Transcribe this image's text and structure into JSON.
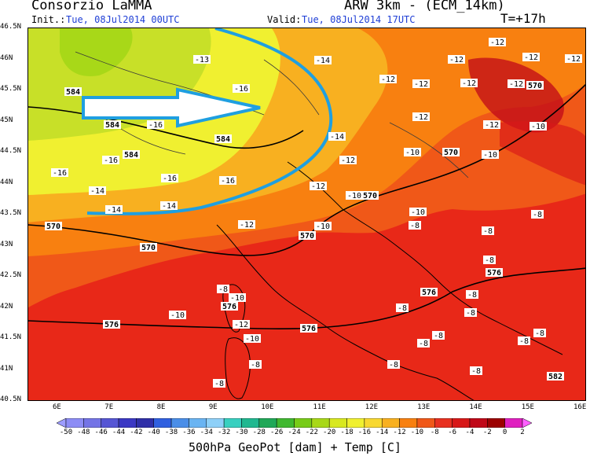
{
  "header": {
    "title": "Consorzio LaMMA",
    "model": "ARW 3km - (ECM_14km)",
    "init_label": "Init.:",
    "init_value": "Tue, 08Jul2014 00UTC",
    "valid_label": "Valid:",
    "valid_value": "Tue, 08Jul2014 17UTC",
    "forecast_step": "T=+17h"
  },
  "axes": {
    "lat_labels": [
      "46.5N",
      "46N",
      "45.5N",
      "45N",
      "44.5N",
      "44N",
      "43.5N",
      "43N",
      "42.5N",
      "42N",
      "41.5N",
      "41N",
      "40.5N"
    ],
    "lon_labels": [
      "6E",
      "7E",
      "8E",
      "9E",
      "10E",
      "11E",
      "12E",
      "13E",
      "14E",
      "15E",
      "16E"
    ]
  },
  "colorbar": {
    "ticks": [
      "-50",
      "-48",
      "-46",
      "-44",
      "-42",
      "-40",
      "-38",
      "-36",
      "-34",
      "-32",
      "-30",
      "-28",
      "-26",
      "-24",
      "-22",
      "-20",
      "-18",
      "-16",
      "-14",
      "-12",
      "-10",
      "-8",
      "-6",
      "-4",
      "-2",
      "0",
      "2"
    ],
    "colors": [
      "#9d9dff",
      "#8c8cf5",
      "#7474e6",
      "#5656d4",
      "#3b38c4",
      "#2f2fa8",
      "#3060e0",
      "#4a8ee8",
      "#6ab4f2",
      "#8ed0f8",
      "#38d0c0",
      "#20b890",
      "#20a858",
      "#40b830",
      "#78cc18",
      "#a8d818",
      "#d8e820",
      "#f0f030",
      "#f8d830",
      "#f8b020",
      "#f88010",
      "#f05818",
      "#e83020",
      "#d81818",
      "#c00818",
      "#9c0000",
      "#e020c0",
      "#ff60ff"
    ],
    "caption": "500hPa GeoPot [dam] + Temp [C]"
  },
  "map_labels": {
    "temperature": [
      {
        "text": "-13",
        "pos": [
          256,
          75
        ]
      },
      {
        "text": "-14",
        "pos": [
          410,
          76
        ]
      },
      {
        "text": "-16",
        "pos": [
          306,
          112
        ]
      },
      {
        "text": "-16",
        "pos": [
          197,
          158
        ]
      },
      {
        "text": "-16",
        "pos": [
          140,
          203
        ]
      },
      {
        "text": "-16",
        "pos": [
          75,
          219
        ]
      },
      {
        "text": "-14",
        "pos": [
          123,
          242
        ]
      },
      {
        "text": "-16",
        "pos": [
          215,
          226
        ]
      },
      {
        "text": "-16",
        "pos": [
          289,
          229
        ]
      },
      {
        "text": "-14",
        "pos": [
          144,
          266
        ]
      },
      {
        "text": "-14",
        "pos": [
          214,
          261
        ]
      },
      {
        "text": "-14",
        "pos": [
          428,
          173
        ]
      },
      {
        "text": "-12",
        "pos": [
          442,
          203
        ]
      },
      {
        "text": "-12",
        "pos": [
          404,
          236
        ]
      },
      {
        "text": "-10",
        "pos": [
          450,
          248
        ]
      },
      {
        "text": "-12",
        "pos": [
          313,
          285
        ]
      },
      {
        "text": "-10",
        "pos": [
          410,
          287
        ]
      },
      {
        "text": "-12",
        "pos": [
          632,
          53
        ]
      },
      {
        "text": "-12",
        "pos": [
          580,
          75
        ]
      },
      {
        "text": "-12",
        "pos": [
          675,
          72
        ]
      },
      {
        "text": "-12",
        "pos": [
          729,
          74
        ]
      },
      {
        "text": "-12",
        "pos": [
          493,
          100
        ]
      },
      {
        "text": "-12",
        "pos": [
          535,
          106
        ]
      },
      {
        "text": "-12",
        "pos": [
          596,
          105
        ]
      },
      {
        "text": "-12",
        "pos": [
          656,
          106
        ]
      },
      {
        "text": "-12",
        "pos": [
          535,
          148
        ]
      },
      {
        "text": "-12",
        "pos": [
          625,
          158
        ]
      },
      {
        "text": "-10",
        "pos": [
          684,
          160
        ]
      },
      {
        "text": "-10",
        "pos": [
          524,
          193
        ]
      },
      {
        "text": "-10",
        "pos": [
          623,
          196
        ]
      },
      {
        "text": "-10",
        "pos": [
          531,
          269
        ]
      },
      {
        "text": "-8",
        "pos": [
          527,
          286
        ]
      },
      {
        "text": "-8",
        "pos": [
          683,
          272
        ]
      },
      {
        "text": "-8",
        "pos": [
          620,
          293
        ]
      },
      {
        "text": "-8",
        "pos": [
          622,
          330
        ]
      },
      {
        "text": "-8",
        "pos": [
          283,
          367
        ]
      },
      {
        "text": "-10",
        "pos": [
          301,
          378
        ]
      },
      {
        "text": "-10",
        "pos": [
          225,
          400
        ]
      },
      {
        "text": "-8",
        "pos": [
          600,
          374
        ]
      },
      {
        "text": "-8",
        "pos": [
          511,
          391
        ]
      },
      {
        "text": "-8",
        "pos": [
          598,
          397
        ]
      },
      {
        "text": "-8",
        "pos": [
          686,
          423
        ]
      },
      {
        "text": "-8",
        "pos": [
          666,
          433
        ]
      },
      {
        "text": "-8",
        "pos": [
          538,
          436
        ]
      },
      {
        "text": "-8",
        "pos": [
          557,
          426
        ]
      },
      {
        "text": "-12",
        "pos": [
          306,
          412
        ]
      },
      {
        "text": "-10",
        "pos": [
          320,
          430
        ]
      },
      {
        "text": "-8",
        "pos": [
          324,
          463
        ]
      },
      {
        "text": "-8",
        "pos": [
          500,
          463
        ]
      },
      {
        "text": "-8",
        "pos": [
          605,
          471
        ]
      },
      {
        "text": "-8",
        "pos": [
          278,
          487
        ]
      }
    ],
    "geopotential": [
      {
        "text": "584",
        "pos": [
          92,
          116
        ]
      },
      {
        "text": "584",
        "pos": [
          142,
          158
        ]
      },
      {
        "text": "584",
        "pos": [
          166,
          196
        ]
      },
      {
        "text": "584",
        "pos": [
          283,
          176
        ]
      },
      {
        "text": "570",
        "pos": [
          67,
          287
        ]
      },
      {
        "text": "570",
        "pos": [
          188,
          314
        ]
      },
      {
        "text": "570",
        "pos": [
          390,
          299
        ]
      },
      {
        "text": "570",
        "pos": [
          573,
          193
        ]
      },
      {
        "text": "570",
        "pos": [
          470,
          248
        ]
      },
      {
        "text": "570",
        "pos": [
          680,
          108
        ]
      },
      {
        "text": "576",
        "pos": [
          628,
          346
        ]
      },
      {
        "text": "576",
        "pos": [
          545,
          371
        ]
      },
      {
        "text": "576",
        "pos": [
          291,
          389
        ]
      },
      {
        "text": "576",
        "pos": [
          141,
          412
        ]
      },
      {
        "text": "576",
        "pos": [
          392,
          417
        ]
      },
      {
        "text": "582",
        "pos": [
          706,
          478
        ]
      }
    ]
  }
}
